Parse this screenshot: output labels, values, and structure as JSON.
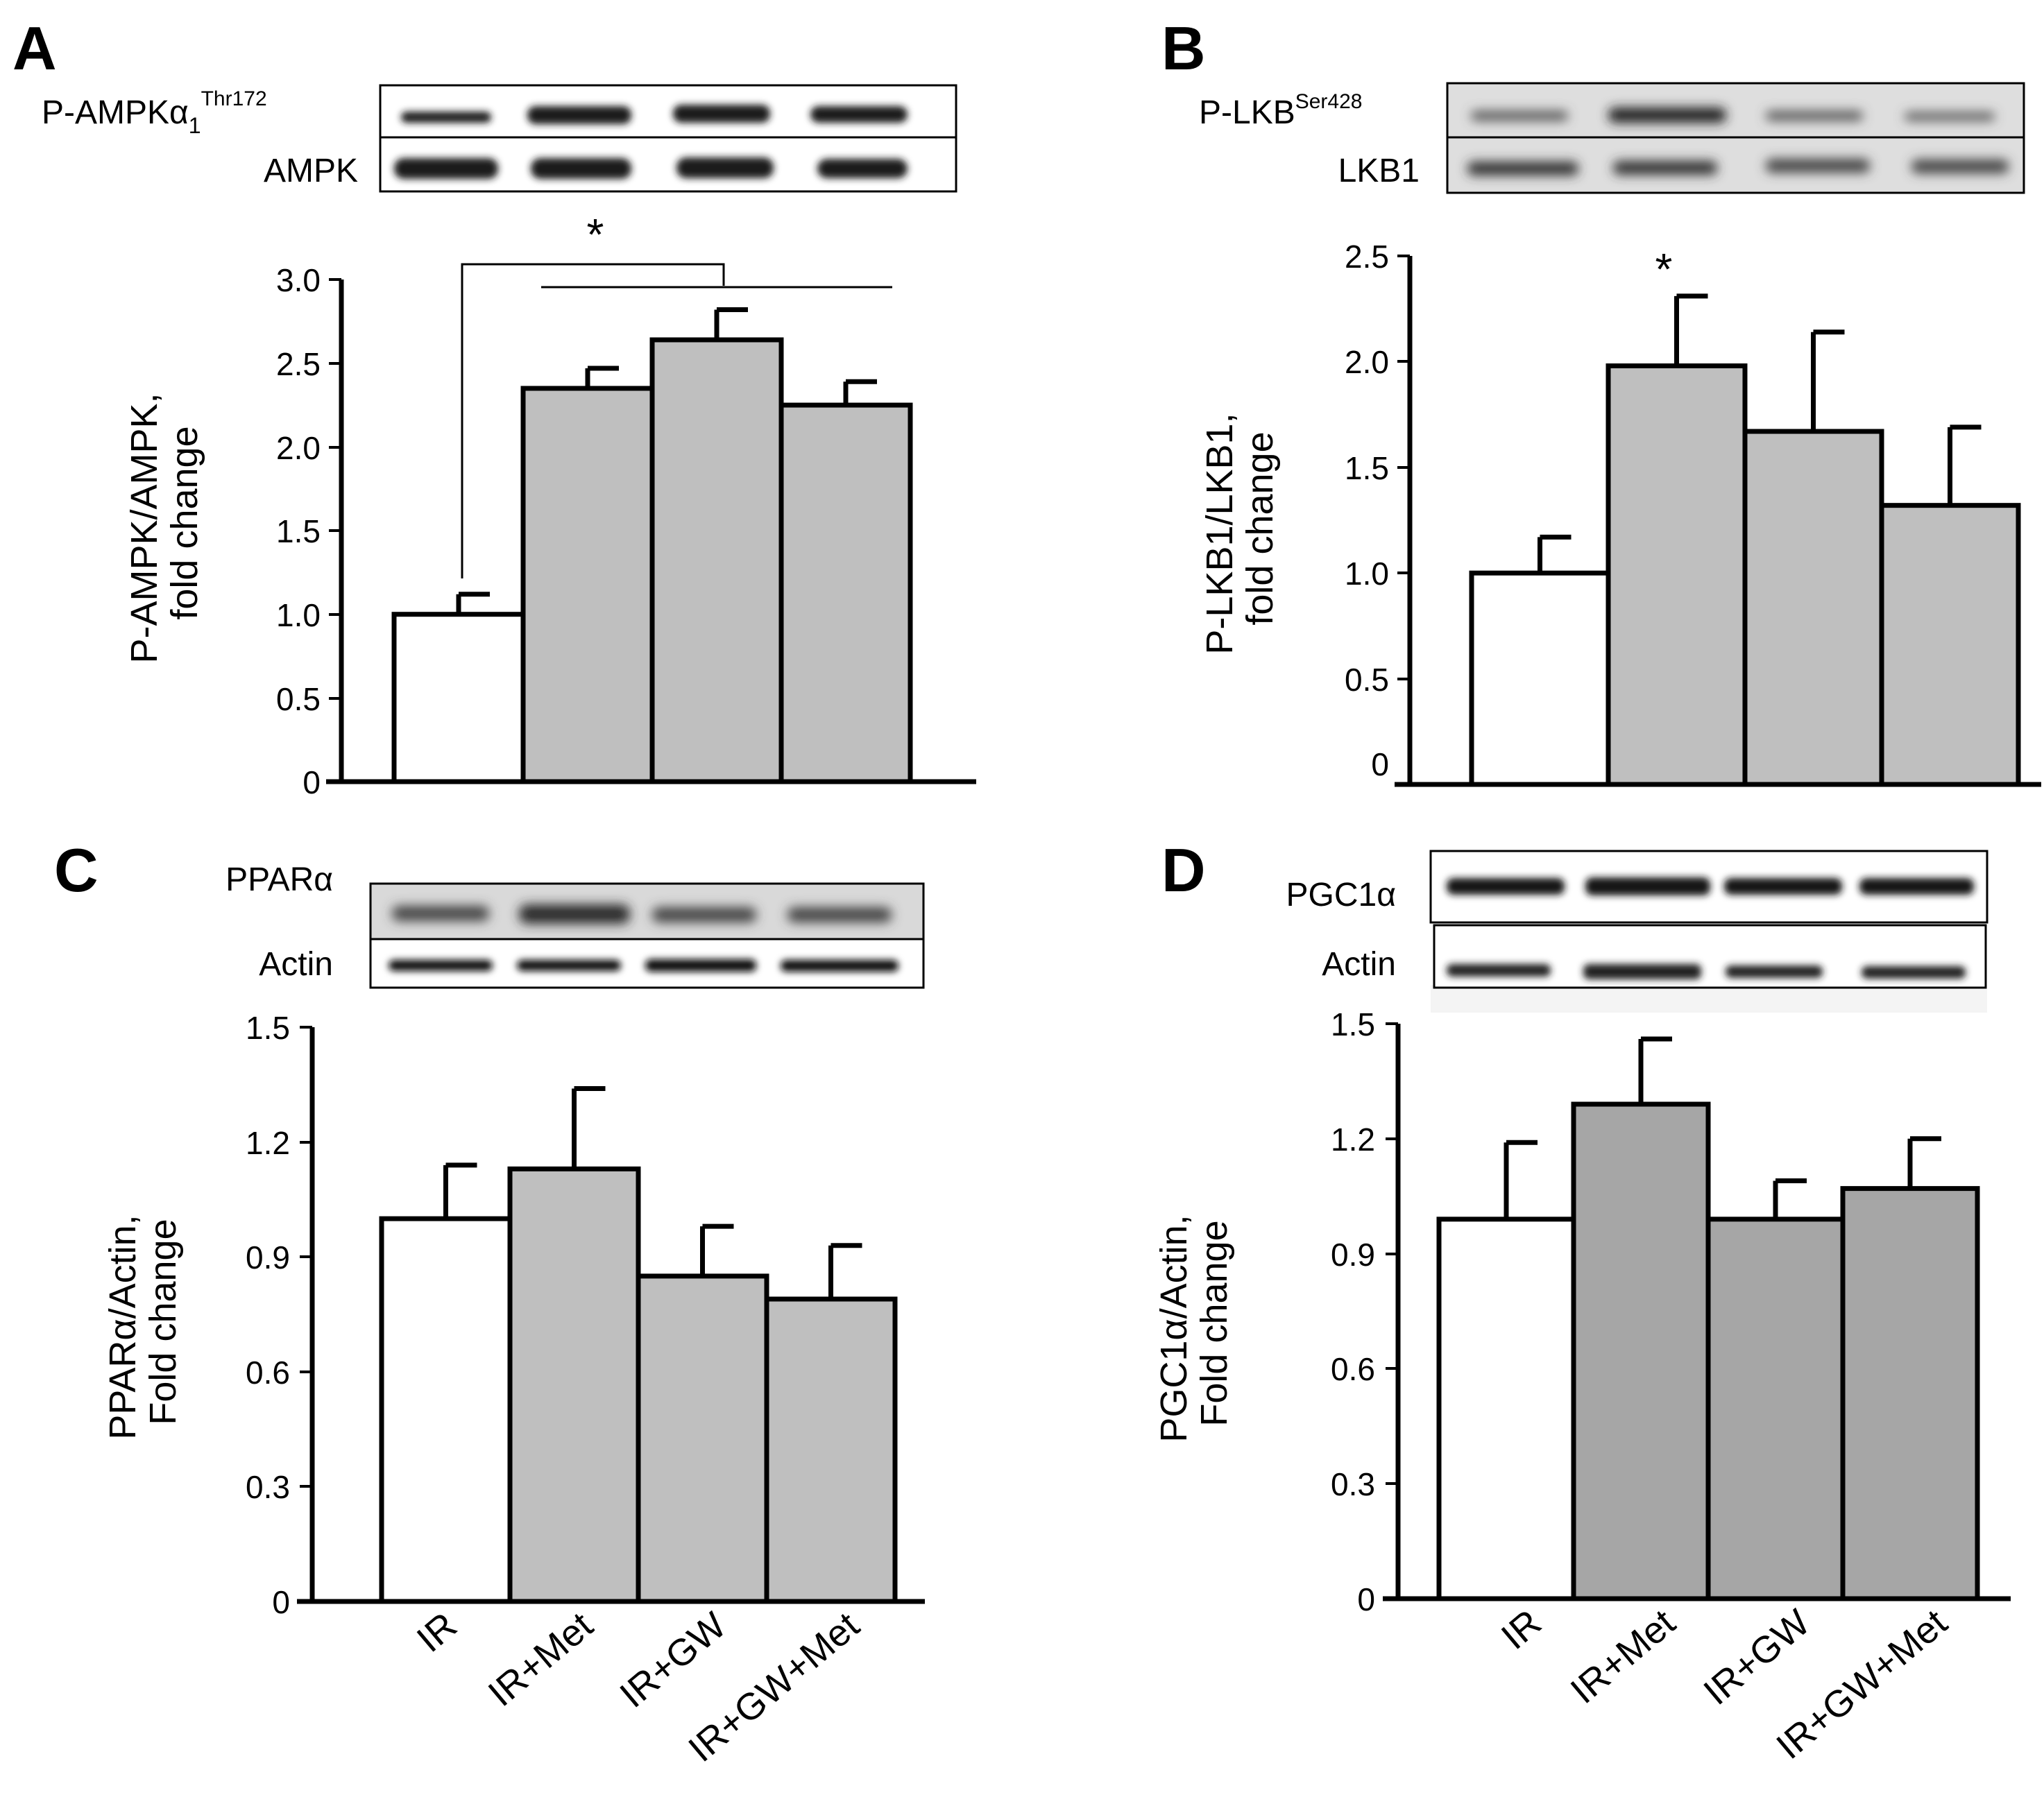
{
  "figure": {
    "x_categories": [
      "IR",
      "IR+Met",
      "IR+GW",
      "IR+GW+Met"
    ]
  },
  "panels": {
    "A": {
      "letter": "A",
      "blot_labels": [
        "P-AMPKα",
        "1",
        "Thr172",
        "AMPK"
      ],
      "ylabel_lines": [
        "P-AMPK/AMPK,",
        "fold change"
      ],
      "ticks": [
        "0",
        "0.5",
        "1.0",
        "1.5",
        "2.0",
        "2.5",
        "3.0"
      ],
      "significance": "*"
    },
    "B": {
      "letter": "B",
      "blot_labels": [
        "P-LKB",
        "Ser428",
        "LKB1"
      ],
      "ylabel_lines": [
        "P-LKB1/LKB1,",
        "fold change"
      ],
      "ticks": [
        "0",
        "0.5",
        "1.0",
        "1.5",
        "2.0",
        "2.5"
      ],
      "significance": "*"
    },
    "C": {
      "letter": "C",
      "blot_labels": [
        "PPARα",
        "Actin"
      ],
      "ylabel_lines": [
        "PPARα/Actin,",
        "Fold change"
      ],
      "ticks": [
        "0",
        "0.3",
        "0.6",
        "0.9",
        "1.2",
        "1.5"
      ],
      "xlabels": [
        "IR",
        "IR+Met",
        "IR+GW",
        "IR+GW+Met"
      ]
    },
    "D": {
      "letter": "D",
      "blot_labels": [
        "PGC1α",
        "Actin"
      ],
      "ylabel_lines": [
        "PGC1α/Actin,",
        "Fold change"
      ],
      "ticks": [
        "0",
        "0.3",
        "0.6",
        "0.9",
        "1.2",
        "1.5"
      ],
      "xlabels": [
        "IR",
        "IR+Met",
        "IR+GW",
        "IR+GW+Met"
      ]
    }
  },
  "colors": {
    "control_fill": "#ffffff",
    "light_gray_fill": "#bfbfbf",
    "dark_gray_fill": "#a6a6a6",
    "band": "#1a1a1a"
  },
  "chart_data": [
    {
      "panel": "A",
      "type": "bar",
      "categories": [
        "IR",
        "IR+Met",
        "IR+GW",
        "IR+GW+Met"
      ],
      "values": [
        1.0,
        2.35,
        2.64,
        2.25
      ],
      "errors": [
        0.12,
        0.12,
        0.18,
        0.14
      ],
      "ylabel": "P-AMPK/AMPK, fold change",
      "ylim": [
        0,
        3.0
      ],
      "annotations": [
        "* IR vs IR+Met, IR+GW, IR+GW+Met"
      ]
    },
    {
      "panel": "B",
      "type": "bar",
      "categories": [
        "IR",
        "IR+Met",
        "IR+GW",
        "IR+GW+Met"
      ],
      "values": [
        1.0,
        1.98,
        1.67,
        1.32
      ],
      "errors": [
        0.17,
        0.33,
        0.47,
        0.37
      ],
      "ylabel": "P-LKB1/LKB1, fold change",
      "ylim": [
        0,
        2.5
      ],
      "annotations": [
        "* above IR+Met"
      ]
    },
    {
      "panel": "C",
      "type": "bar",
      "categories": [
        "IR",
        "IR+Met",
        "IR+GW",
        "IR+GW+Met"
      ],
      "values": [
        1.0,
        1.13,
        0.85,
        0.79
      ],
      "errors": [
        0.14,
        0.21,
        0.13,
        0.14
      ],
      "ylabel": "PPARα/Actin, Fold change",
      "ylim": [
        0,
        1.5
      ]
    },
    {
      "panel": "D",
      "type": "bar",
      "categories": [
        "IR",
        "IR+Met",
        "IR+GW",
        "IR+GW+Met"
      ],
      "values": [
        0.99,
        1.29,
        0.99,
        1.07
      ],
      "errors": [
        0.2,
        0.17,
        0.1,
        0.13
      ],
      "ylabel": "PGC1α/Actin, Fold change",
      "ylim": [
        0,
        1.5
      ]
    }
  ]
}
